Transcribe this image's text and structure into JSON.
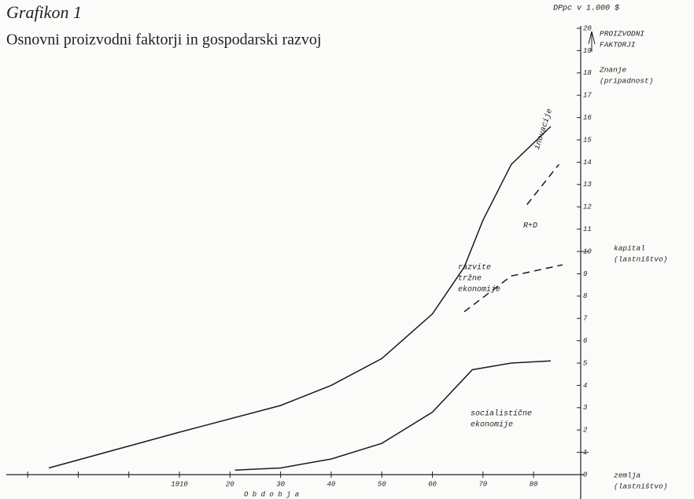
{
  "chart_data": {
    "type": "line",
    "title": "Grafikon 1",
    "subtitle": "Osnovni proizvodni faktorji in gospodarski razvoj",
    "y_label": "DPpc v 1.000 $",
    "x_label": "O b d o b j a",
    "xlim": [
      1876,
      1990
    ],
    "xticks": [
      1910,
      {
        "value": 1920,
        "label": "20"
      },
      {
        "value": 1930,
        "label": "30"
      },
      {
        "value": 1940,
        "label": "40"
      },
      {
        "value": 1950,
        "label": "50"
      },
      {
        "value": 1960,
        "label": "60"
      },
      {
        "value": 1970,
        "label": "70"
      },
      {
        "value": 1980,
        "label": "80"
      }
    ],
    "minor_xticks": [
      1880,
      1890,
      1900
    ],
    "ylim": [
      0,
      20
    ],
    "yticks": [
      0,
      1,
      2,
      3,
      4,
      5,
      6,
      7,
      8,
      9,
      10,
      11,
      12,
      13,
      14,
      15,
      16,
      17,
      18,
      19,
      20
    ],
    "series": [
      {
        "color": "#1a1a1a",
        "dashed": false,
        "x": [
          1884.2,
          1910,
          1930,
          1940,
          1950,
          1960,
          1966.3,
          1970,
          1975.6,
          1983.4
        ],
        "values": [
          0.3,
          1.9,
          3.1,
          4.0,
          5.2,
          7.2,
          9.3,
          11.4,
          13.9,
          15.6
        ]
      },
      {
        "color": "#1a1a1a",
        "dashed": false,
        "x": [
          1921,
          1930,
          1940,
          1950,
          1960,
          1967.9,
          1975.6,
          1983.4
        ],
        "values": [
          0.2,
          0.3,
          0.7,
          1.4,
          2.8,
          4.7,
          5.0,
          5.1
        ]
      },
      {
        "color": "#1a1a1a",
        "dashed": true,
        "x": [
          1966.3,
          1975.6,
          1985.7
        ],
        "values": [
          7.3,
          8.9,
          9.4
        ]
      },
      {
        "color": "#1a1a1a",
        "dashed": true,
        "x": [
          1978.7,
          1985
        ],
        "values": [
          12.1,
          13.9
        ]
      }
    ],
    "annotations": [
      [
        "inovacije"
      ],
      [
        "R+D"
      ],
      [
        "razvite",
        "tržne",
        "ekonomije"
      ],
      [
        "socialistične",
        "ekonomije"
      ]
    ],
    "factor_labels": [
      [
        "PROIZVODNI",
        "FAKTORJI"
      ],
      [
        "Znanje",
        "(pripadnost)"
      ],
      [
        "kapital",
        "(lastništvo)"
      ],
      [
        "zemlja",
        "(lastništvo)"
      ]
    ]
  }
}
